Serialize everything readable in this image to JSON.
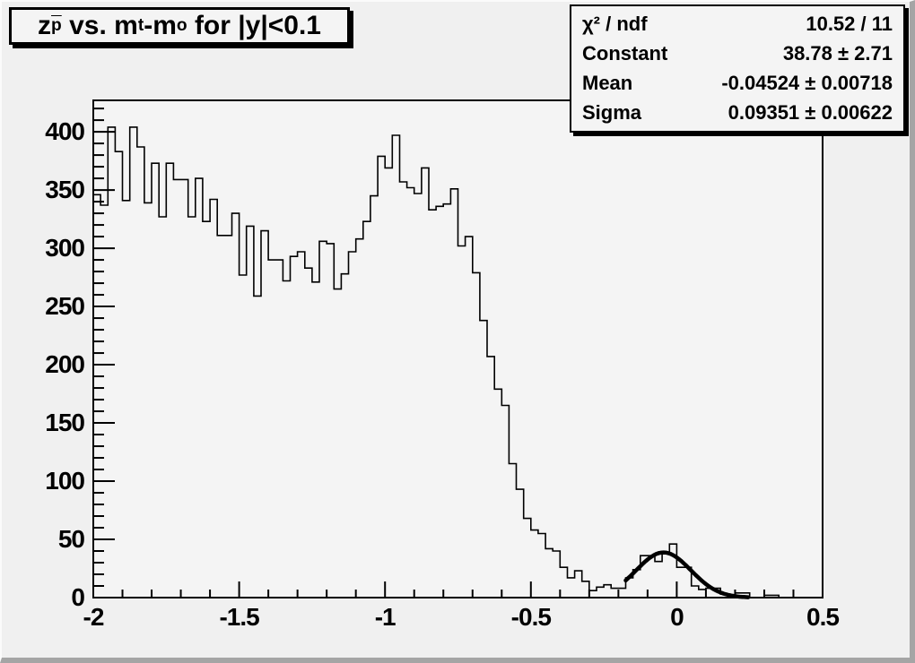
{
  "title": {
    "segments": [
      {
        "t": "z"
      },
      {
        "t": "p",
        "sub": true,
        "overline": true
      },
      {
        "t": " vs. m"
      },
      {
        "t": "t",
        "sub": true
      },
      {
        "t": "-m"
      },
      {
        "t": "o",
        "sub": true
      },
      {
        "t": " for |y|<0.1"
      }
    ],
    "plain": "z_p(bar) vs. m_t-m_o for |y|<0.1"
  },
  "stats": {
    "rows": [
      {
        "label": "χ² / ndf",
        "value": "10.52 / 11"
      },
      {
        "label": "Constant",
        "value": "38.78 ± 2.71"
      },
      {
        "label": "Mean",
        "value": "-0.04524 ± 0.00718"
      },
      {
        "label": "Sigma",
        "value": "0.09351 ± 0.00622"
      }
    ]
  },
  "colors": {
    "canvas_bg": "#f0f0f0",
    "frame_bg": "#f4f4f4",
    "line": "#000000",
    "box_bg": "#f4f4f4",
    "bevel_light": "#fbfbfb",
    "bevel_dark": "#a5a5a5"
  },
  "chart_data": {
    "type": "bar",
    "subtype": "histogram-step",
    "title": "z_p(bar) vs. m_t-m_o for |y|<0.1",
    "xlabel": "",
    "ylabel": "",
    "xlim": [
      -2.0,
      0.5
    ],
    "ylim": [
      0,
      427
    ],
    "grid": false,
    "legend": false,
    "bin_start": -2.0,
    "bin_width": 0.025,
    "values": [
      346,
      337,
      404,
      383,
      341,
      404,
      387,
      339,
      373,
      327,
      373,
      359,
      359,
      327,
      360,
      323,
      342,
      311,
      311,
      330,
      277,
      319,
      259,
      315,
      290,
      290,
      272,
      293,
      297,
      283,
      271,
      306,
      304,
      265,
      278,
      297,
      308,
      323,
      345,
      379,
      369,
      397,
      357,
      352,
      347,
      369,
      333,
      336,
      338,
      351,
      302,
      310,
      279,
      238,
      207,
      179,
      165,
      115,
      93,
      68,
      58,
      55,
      42,
      40,
      26,
      17,
      23,
      14,
      6,
      9,
      11,
      8,
      8,
      17,
      24,
      36,
      36,
      31,
      38,
      46,
      26,
      26,
      10,
      7,
      8,
      8,
      3,
      2,
      4,
      4,
      0,
      0,
      2,
      2,
      0,
      0,
      0,
      0,
      0,
      0
    ],
    "x_major_ticks": {
      "values": [
        -2,
        -1.5,
        -1,
        -0.5,
        0,
        0.5
      ],
      "labels": [
        "-2",
        "-1.5",
        "-1",
        "-0.5",
        "0",
        "0.5"
      ]
    },
    "y_major_ticks": {
      "values": [
        0,
        50,
        100,
        150,
        200,
        250,
        300,
        350,
        400
      ],
      "labels": [
        "0",
        "50",
        "100",
        "150",
        "200",
        "250",
        "300",
        "350",
        "400"
      ]
    },
    "x_minor_step": 0.1,
    "y_minor_step": 10,
    "fit": {
      "shape": "gaussian",
      "constant": 38.78,
      "mean": -0.04524,
      "sigma": 0.09351,
      "chi2": 10.52,
      "ndf": 11,
      "draw_range": [
        -0.175,
        0.245
      ]
    }
  }
}
